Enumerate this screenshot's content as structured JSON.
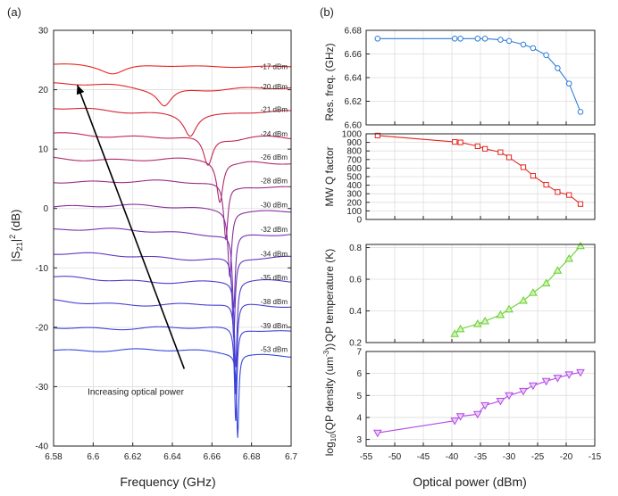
{
  "chart_data": [
    {
      "type": "line",
      "panel_label": "(a)",
      "xlabel": "Frequency (GHz)",
      "ylabel": "|S21|2 (dB)",
      "ylabel_parts": {
        "main": "|S",
        "sub": "21",
        "bar": "|",
        "sup": "2",
        "unit": " (dB)"
      },
      "xlim": [
        6.58,
        6.7
      ],
      "ylim": [
        -40,
        30
      ],
      "xticks": [
        6.58,
        6.6,
        6.62,
        6.64,
        6.66,
        6.68,
        6.7
      ],
      "xtick_labels": [
        "6.58",
        "6.6",
        "6.62",
        "6.64",
        "6.66",
        "6.68",
        "6.7"
      ],
      "yticks": [
        -40,
        -30,
        -20,
        -10,
        0,
        10,
        20,
        30
      ],
      "ytick_labels": [
        "-40",
        "-30",
        "-20",
        "-10",
        "0",
        "10",
        "20",
        "30"
      ],
      "annotation": {
        "text": "Increasing optical power",
        "arrow_from": [
          6.646,
          -27.0
        ],
        "arrow_to": [
          6.592,
          20.8
        ]
      },
      "series": [
        {
          "name": "-17 dBm",
          "power": -17,
          "label": "-17 dBm",
          "color": "#e8231e",
          "offset": 24.4,
          "slope_end": 23.9,
          "res_f": 6.61,
          "depth": 1.7,
          "width": 0.008,
          "ripple": 0.3,
          "shoulder": 0.0,
          "label_y": 23.0
        },
        {
          "name": "-20 dBm",
          "power": -20,
          "label": "-20 dBm",
          "color": "#e12325",
          "offset": 20.8,
          "slope_end": 20.1,
          "res_f": 6.636,
          "depth": 3.0,
          "width": 0.0045,
          "ripple": 0.6,
          "shoulder": 0.0,
          "label_y": 19.6
        },
        {
          "name": "-21 dBm",
          "power": -21,
          "label": "-21 dBm",
          "color": "#d52336",
          "offset": 16.7,
          "slope_end": 16.1,
          "res_f": 6.649,
          "depth": 3.7,
          "width": 0.0038,
          "ripple": 0.6,
          "shoulder": 0.4,
          "label_y": 15.8
        },
        {
          "name": "-24 dBm",
          "power": -24,
          "label": "-24 dBm",
          "color": "#c42550",
          "offset": 12.6,
          "slope_end": 11.9,
          "res_f": 6.658,
          "depth": 5.0,
          "width": 0.0028,
          "ripple": 0.6,
          "shoulder": 0.6,
          "label_y": 11.7
        },
        {
          "name": "-26 dBm",
          "power": -26,
          "label": "-26 dBm",
          "color": "#b1286b",
          "offset": 8.6,
          "slope_end": 7.8,
          "res_f": 6.664,
          "depth": 7.0,
          "width": 0.0019,
          "ripple": 0.6,
          "shoulder": 0.5,
          "label_y": 7.8
        },
        {
          "name": "-28 dBm",
          "power": -28,
          "label": "-28 dBm",
          "color": "#9c2b85",
          "offset": 4.8,
          "slope_end": 3.8,
          "res_f": 6.667,
          "depth": 9.3,
          "width": 0.0013,
          "ripple": 0.6,
          "shoulder": 0.3,
          "label_y": 3.8
        },
        {
          "name": "-30 dBm",
          "power": -30,
          "label": "-30 dBm",
          "color": "#882f9c",
          "offset": 0.5,
          "slope_end": -0.3,
          "res_f": 6.669,
          "depth": 11.0,
          "width": 0.0011,
          "ripple": 0.6,
          "shoulder": 0.0,
          "label_y": -0.3
        },
        {
          "name": "-32 dBm",
          "power": -32,
          "label": "-32 dBm",
          "color": "#7333b0",
          "offset": -3.6,
          "slope_end": -4.4,
          "res_f": 6.671,
          "depth": 12.5,
          "width": 0.0009,
          "ripple": 0.6,
          "shoulder": 0.0,
          "label_y": -4.4
        },
        {
          "name": "-34 dBm",
          "power": -34,
          "label": "-34 dBm",
          "color": "#6136bf",
          "offset": -7.8,
          "slope_end": -8.5,
          "res_f": 6.671,
          "depth": 13.5,
          "width": 0.00085,
          "ripple": 0.6,
          "shoulder": 0.0,
          "label_y": -8.5
        },
        {
          "name": "-35 dBm",
          "power": -35,
          "label": "-35 dBm",
          "color": "#5239ca",
          "offset": -11.8,
          "slope_end": -12.5,
          "res_f": 6.672,
          "depth": 14.5,
          "width": 0.0008,
          "ripple": 0.6,
          "shoulder": 0.0,
          "label_y": -12.5
        },
        {
          "name": "-38 dBm",
          "power": -38,
          "label": "-38 dBm",
          "color": "#453dd4",
          "offset": -15.6,
          "slope_end": -16.6,
          "res_f": 6.672,
          "depth": 15.5,
          "width": 0.00075,
          "ripple": 0.6,
          "shoulder": 0.0,
          "label_y": -16.6
        },
        {
          "name": "-39 dBm",
          "power": -39,
          "label": "-39 dBm",
          "color": "#3c41db",
          "offset": -19.8,
          "slope_end": -20.6,
          "res_f": 6.672,
          "depth": 15.8,
          "width": 0.0007,
          "ripple": 0.6,
          "shoulder": 0.0,
          "label_y": -20.6
        },
        {
          "name": "-53 dBm",
          "power": -53,
          "label": "-53 dBm",
          "color": "#3546e0",
          "offset": -23.6,
          "slope_end": -24.6,
          "res_f": 6.673,
          "depth": 14.0,
          "width": 0.00065,
          "ripple": 0.6,
          "shoulder": 0.0,
          "label_y": -24.6
        }
      ]
    },
    {
      "type": "line",
      "panel_label": "(b)",
      "xlabel": "Optical power (dBm)",
      "xlim": [
        -55,
        -15
      ],
      "xticks": [
        -55,
        -50,
        -45,
        -40,
        -35,
        -30,
        -25,
        -20,
        -15
      ],
      "xtick_labels": [
        "-55",
        "-50",
        "-45",
        "-40",
        "-35",
        "-30",
        "-25",
        "-20",
        "-15"
      ],
      "x": [
        -53,
        -39.5,
        -38.5,
        -35.5,
        -34.2,
        -31.5,
        -30,
        -27.5,
        -25.8,
        -23.5,
        -21.5,
        -19.5,
        -17.5
      ],
      "subplots": [
        {
          "ylabel": "Res. freq. (GHz)",
          "ylim": [
            6.6,
            6.68
          ],
          "yticks": [
            6.6,
            6.62,
            6.64,
            6.66,
            6.68
          ],
          "ytick_labels": [
            "6.60",
            "6.62",
            "6.64",
            "6.66",
            "6.68"
          ],
          "marker": "circle",
          "color": "#2e7ed6",
          "y": [
            6.673,
            6.673,
            6.673,
            6.673,
            6.673,
            6.672,
            6.671,
            6.668,
            6.665,
            6.659,
            6.648,
            6.635,
            6.611
          ]
        },
        {
          "ylabel": "MW Q factor",
          "ylim": [
            0,
            1000
          ],
          "yticks": [
            0,
            100,
            200,
            300,
            400,
            500,
            600,
            700,
            800,
            900,
            1000
          ],
          "ytick_labels": [
            "0",
            "100",
            "200",
            "300",
            "400",
            "500",
            "600",
            "700",
            "800",
            "900",
            "1000"
          ],
          "marker": "square",
          "color": "#e3261f",
          "y": [
            980,
            905,
            900,
            855,
            825,
            785,
            725,
            610,
            510,
            405,
            320,
            285,
            180
          ]
        },
        {
          "ylabel": "QP temperature (K)",
          "ylim": [
            0.2,
            0.82
          ],
          "yticks": [
            0.2,
            0.4,
            0.6,
            0.8
          ],
          "ytick_labels": [
            "0.2",
            "0.4",
            "0.6",
            "0.8"
          ],
          "marker": "triangle-up",
          "color": "#66d12a",
          "fill": "#cff2b8",
          "x": [
            -39.5,
            -38.5,
            -35.5,
            -34.2,
            -31.5,
            -30,
            -27.5,
            -25.8,
            -23.5,
            -21.5,
            -19.5,
            -17.5
          ],
          "y": [
            0.255,
            0.285,
            0.318,
            0.335,
            0.375,
            0.41,
            0.465,
            0.515,
            0.575,
            0.655,
            0.73,
            0.81
          ]
        },
        {
          "ylabel": "log10(QP density (um-3))",
          "ylabel_parts": {
            "pre": "log",
            "sub": "10",
            "mid": "(QP density (um",
            "sup": "-3",
            "post": "))"
          },
          "ylim": [
            2.7,
            7
          ],
          "yticks": [
            3,
            4,
            5,
            6,
            7
          ],
          "ytick_labels": [
            "3",
            "4",
            "5",
            "6",
            "7"
          ],
          "marker": "triangle-down",
          "color": "#b347e6",
          "fill": "#ead0f7",
          "y": [
            3.3,
            3.85,
            4.05,
            4.15,
            4.55,
            4.75,
            5.0,
            5.2,
            5.45,
            5.65,
            5.8,
            5.95,
            6.05
          ]
        }
      ]
    }
  ]
}
